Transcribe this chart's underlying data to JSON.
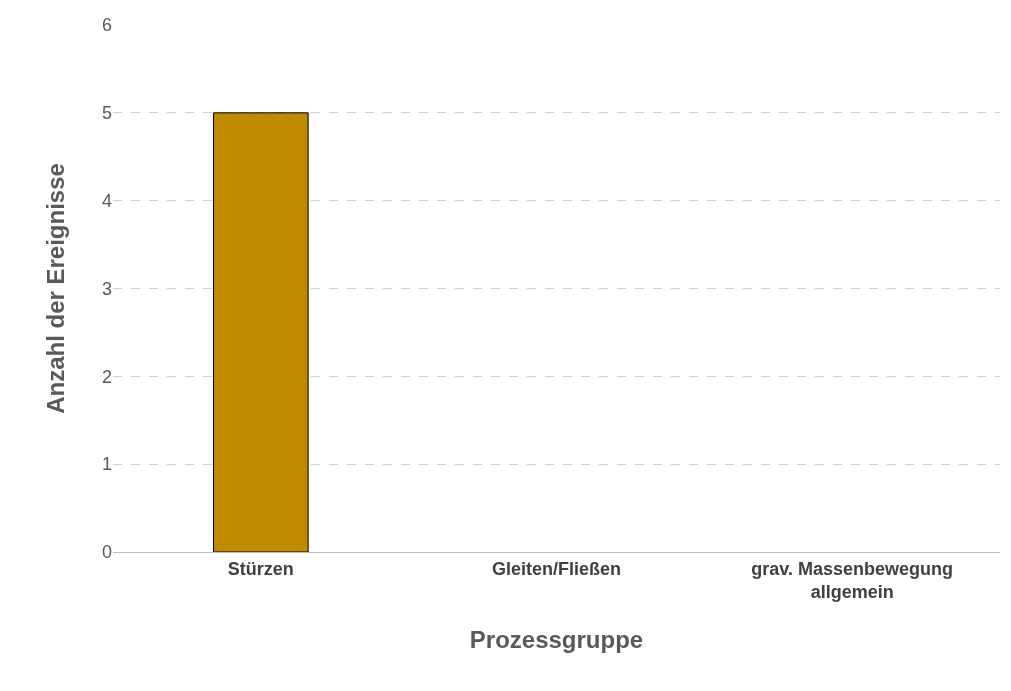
{
  "chart_data": {
    "type": "bar",
    "xlabel": "Prozessgruppe",
    "ylabel": "Anzahl der Ereignisse",
    "categories": [
      "Stürzen",
      "Gleiten/Fließen",
      "grav. Massenbewegung allgemein"
    ],
    "values": [
      5,
      0,
      0
    ],
    "color": "#bf8a00",
    "ylim": [
      0,
      6
    ],
    "yticks": [
      0,
      1,
      2,
      3,
      4,
      5,
      6
    ],
    "grid": "y",
    "legend": false
  }
}
